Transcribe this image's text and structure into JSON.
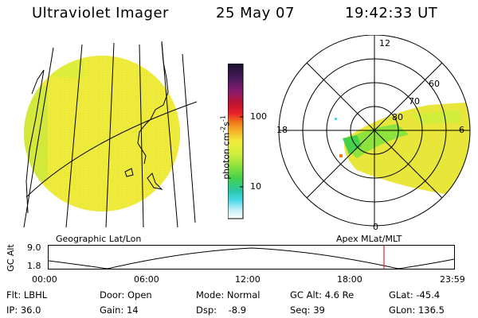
{
  "header": {
    "title": "Ultraviolet Imager",
    "date": "25 May 07",
    "time": "19:42:33 UT"
  },
  "colorbar": {
    "unit_label": "photon cm",
    "unit_exp1": "-2",
    "unit_mid": "s",
    "unit_exp2": "-1",
    "ticks": [
      {
        "value": "100"
      },
      {
        "value": "10"
      }
    ],
    "colors": [
      "#1a0f2e",
      "#4b1a5e",
      "#8a1a6e",
      "#c0142e",
      "#e8202a",
      "#f07a18",
      "#f5b52a",
      "#f2ea3a",
      "#d2ee3c",
      "#8ee23c",
      "#44d24a",
      "#2cc6a6",
      "#46d8e8",
      "#bdeef5",
      "#ffffff"
    ]
  },
  "left_panel": {
    "label": "Geographic Lat/Lon"
  },
  "right_panel": {
    "label": "Apex MLat/MLT",
    "mlt_labels": {
      "top": "12",
      "left": "18",
      "right": "6",
      "bottom": "0"
    },
    "lat_labels": [
      "60",
      "70",
      "80"
    ]
  },
  "timeline": {
    "ylabel": "GC Alt",
    "y_ticks": [
      "9.0",
      "1.8"
    ],
    "x_ticks": [
      "00:00",
      "06:00",
      "12:00",
      "18:00",
      "23:59"
    ],
    "current_marker_color": "#e8202a"
  },
  "status": {
    "flt": "Flt: LBHL",
    "ip": "IP: 36.0",
    "door": "Door: Open",
    "gain": "Gain: 14",
    "mode": "Mode: Normal",
    "dsp": "Dsp:    -8.9",
    "gcalt": "GC Alt: 4.6 Re",
    "seq": "Seq: 39",
    "glat": "GLat: -45.4",
    "glon": "GLon: 136.5"
  }
}
